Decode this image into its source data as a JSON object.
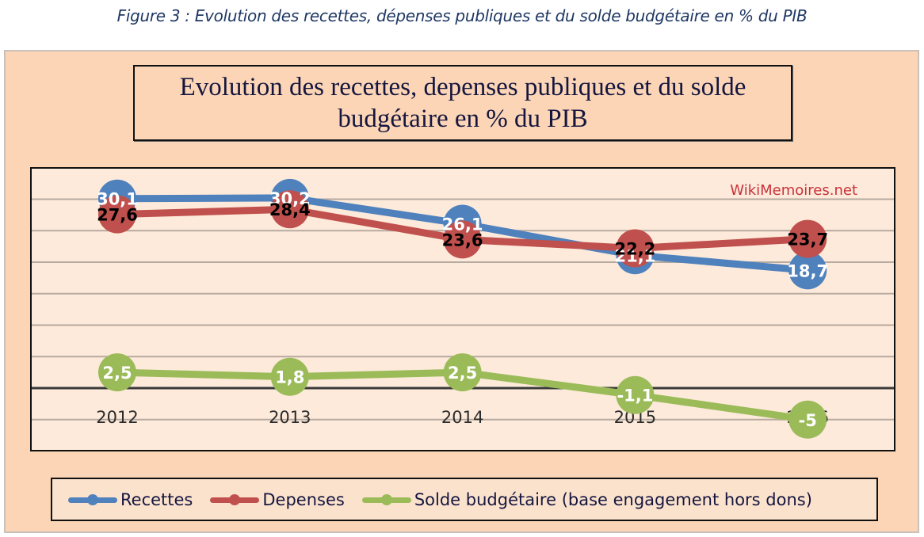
{
  "caption": "Figure 3 : Evolution des recettes, dépenses publiques et du solde budgétaire en % du PIB",
  "watermark": "WikiMemoires.net",
  "colors": {
    "recettes": "#4f81bd",
    "depenses": "#c0504d",
    "solde": "#9bbb59",
    "frame_bg": "#fbd5b5",
    "plot_bg": "#fdeada",
    "watermark": "#c8323c"
  },
  "chart_data": {
    "type": "line",
    "title_line1": "Evolution des recettes, depenses publiques et du solde",
    "title_line2": "budgétaire en % du PIB",
    "xlabel": "",
    "ylabel": "",
    "categories": [
      "2012",
      "2013",
      "2014",
      "2015",
      "2016"
    ],
    "ylim": [
      -10,
      35
    ],
    "y_gridlines_step": 5,
    "y_axis_labels_visible": false,
    "grid": true,
    "legend_position": "bottom",
    "series": [
      {
        "name": "Recettes",
        "key": "recettes",
        "values": [
          30.1,
          30.2,
          26.1,
          21.1,
          18.7
        ],
        "labels": [
          "30,1",
          "30,2",
          "26,1",
          "21,1",
          "18,7"
        ],
        "label_color": "#ffffff"
      },
      {
        "name": "Depenses",
        "key": "depenses",
        "values": [
          27.6,
          28.4,
          23.6,
          22.2,
          23.7
        ],
        "labels": [
          "27,6",
          "28,4",
          "23,6",
          "22,2",
          "23,7"
        ],
        "label_color": "#000000"
      },
      {
        "name": "Solde budgétaire (base engagement hors dons)",
        "key": "solde",
        "values": [
          2.5,
          1.8,
          2.5,
          -1.1,
          -5
        ],
        "labels": [
          "2,5",
          "1,8",
          "2,5",
          "-1,1",
          "-5"
        ],
        "label_color": "#ffffff"
      }
    ]
  }
}
